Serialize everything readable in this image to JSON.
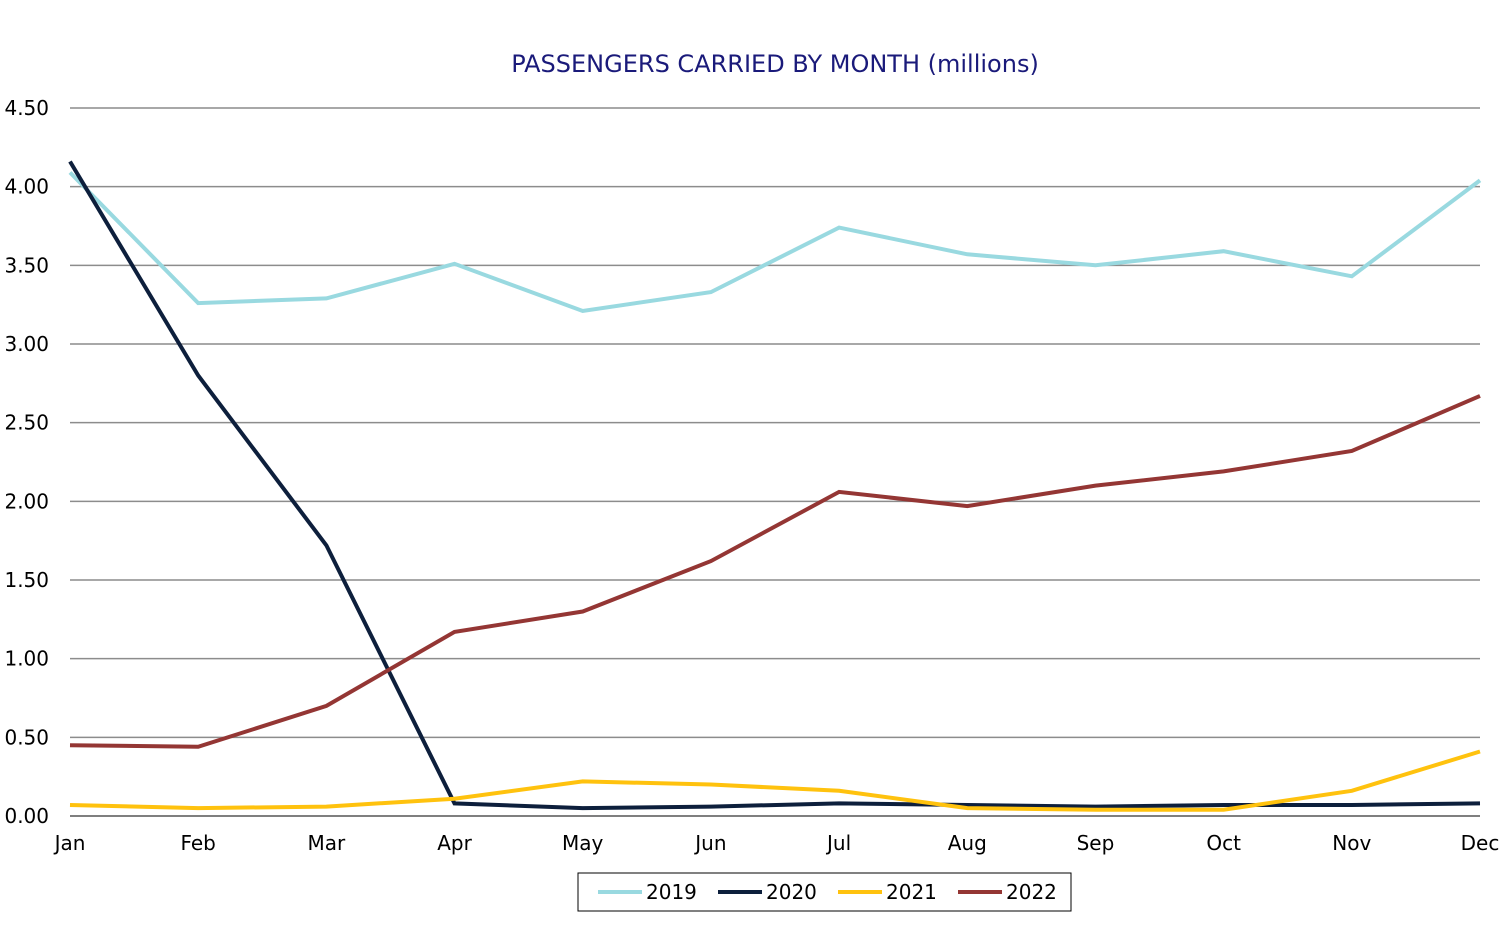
{
  "chart_data": {
    "type": "line",
    "title": "PASSENGERS CARRIED BY MONTH (millions)",
    "xlabel": "",
    "ylabel": "",
    "categories": [
      "Jan",
      "Feb",
      "Mar",
      "Apr",
      "May",
      "Jun",
      "Jul",
      "Aug",
      "Sep",
      "Oct",
      "Nov",
      "Dec"
    ],
    "y_ticks": [
      "0.00",
      "0.50",
      "1.00",
      "1.50",
      "2.00",
      "2.50",
      "3.00",
      "3.50",
      "4.00",
      "4.50"
    ],
    "ylim": [
      0,
      4.5
    ],
    "grid": true,
    "legend_position": "bottom",
    "series": [
      {
        "name": "2019",
        "color": "#99d9e0",
        "values": [
          4.09,
          3.26,
          3.29,
          3.51,
          3.21,
          3.33,
          3.74,
          3.57,
          3.5,
          3.59,
          3.43,
          4.04
        ]
      },
      {
        "name": "2020",
        "color": "#0d1f3c",
        "values": [
          4.16,
          2.8,
          1.72,
          0.08,
          0.05,
          0.06,
          0.08,
          0.07,
          0.06,
          0.07,
          0.07,
          0.08
        ]
      },
      {
        "name": "2021",
        "color": "#ffc20e",
        "values": [
          0.07,
          0.05,
          0.06,
          0.11,
          0.22,
          0.2,
          0.16,
          0.05,
          0.04,
          0.04,
          0.16,
          0.41
        ]
      },
      {
        "name": "2022",
        "color": "#943634",
        "values": [
          0.45,
          0.44,
          0.7,
          1.17,
          1.3,
          1.62,
          2.06,
          1.97,
          2.1,
          2.19,
          2.32,
          2.67
        ]
      }
    ]
  }
}
